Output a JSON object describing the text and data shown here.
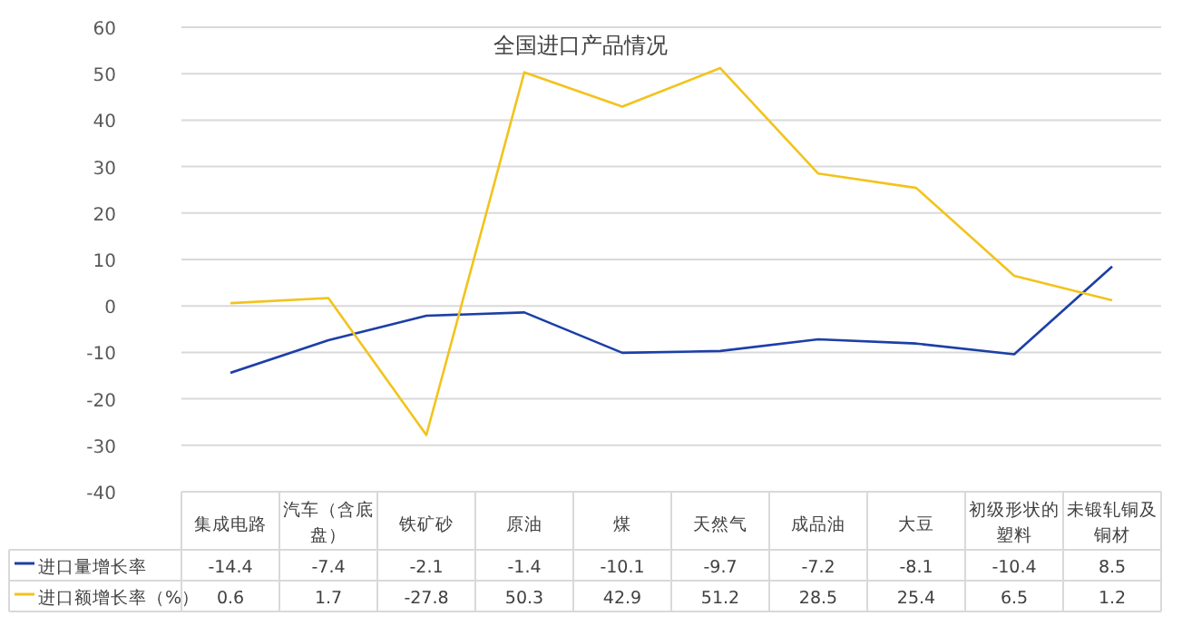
{
  "chart_data": {
    "type": "line",
    "title": "全国进口产品情况",
    "categories": [
      "集成电路",
      "汽车（含底盘）",
      "铁矿砂",
      "原油",
      "煤",
      "天然气",
      "成品油",
      "大豆",
      "初级形状的塑料",
      "未锻轧铜及铜材"
    ],
    "series": [
      {
        "name": "进口量增长率",
        "color": "#1c3fa6",
        "values": [
          -14.4,
          -7.4,
          -2.1,
          -1.4,
          -10.1,
          -9.7,
          -7.2,
          -8.1,
          -10.4,
          8.5
        ]
      },
      {
        "name": "进口额增长率（%）",
        "color": "#f2c31c",
        "values": [
          0.6,
          1.7,
          -27.8,
          50.3,
          42.9,
          51.2,
          28.5,
          25.4,
          6.5,
          1.2
        ]
      }
    ],
    "ylim": [
      -40,
      60
    ],
    "yticks": [
      -40,
      -30,
      -20,
      -10,
      0,
      10,
      20,
      30,
      40,
      50,
      60
    ],
    "grid": "y",
    "legend": "bottom",
    "data_labels": true,
    "marker": "none"
  }
}
